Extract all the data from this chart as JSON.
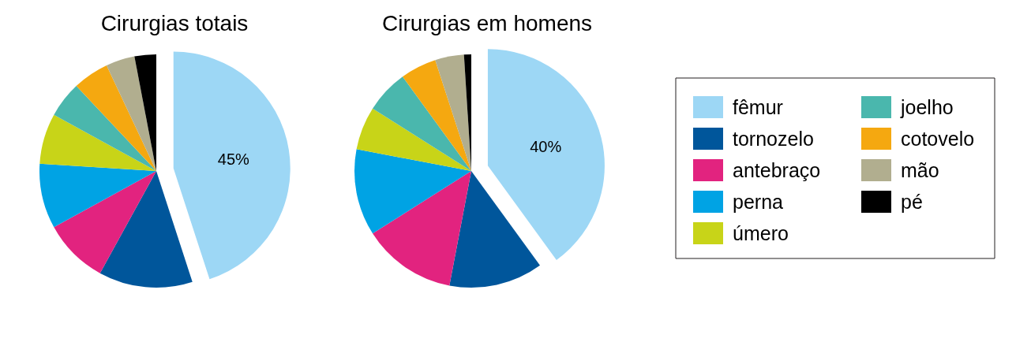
{
  "chart_data": {
    "type": "pie",
    "categories": [
      "fêmur",
      "tornozelo",
      "antebraço",
      "perna",
      "úmero",
      "joelho",
      "cotovelo",
      "mão",
      "pé"
    ],
    "colors": [
      "#9dd7f5",
      "#00569b",
      "#e2237f",
      "#00a3e4",
      "#c8d418",
      "#4ab7ad",
      "#f5a810",
      "#b1ae8f",
      "#000000"
    ],
    "legend": "right",
    "series": [
      {
        "name": "Cirurgias totais",
        "values": [
          45,
          13,
          9,
          9,
          7,
          5,
          5,
          4,
          3
        ],
        "value_labels": [
          "45%",
          null,
          null,
          null,
          null,
          null,
          null,
          null,
          null
        ]
      },
      {
        "name": "Cirurgias em homens",
        "values": [
          40,
          13,
          13,
          12,
          6,
          6,
          5,
          4,
          1
        ],
        "value_labels": [
          "40%",
          null,
          null,
          null,
          null,
          null,
          null,
          null,
          null
        ]
      }
    ]
  }
}
